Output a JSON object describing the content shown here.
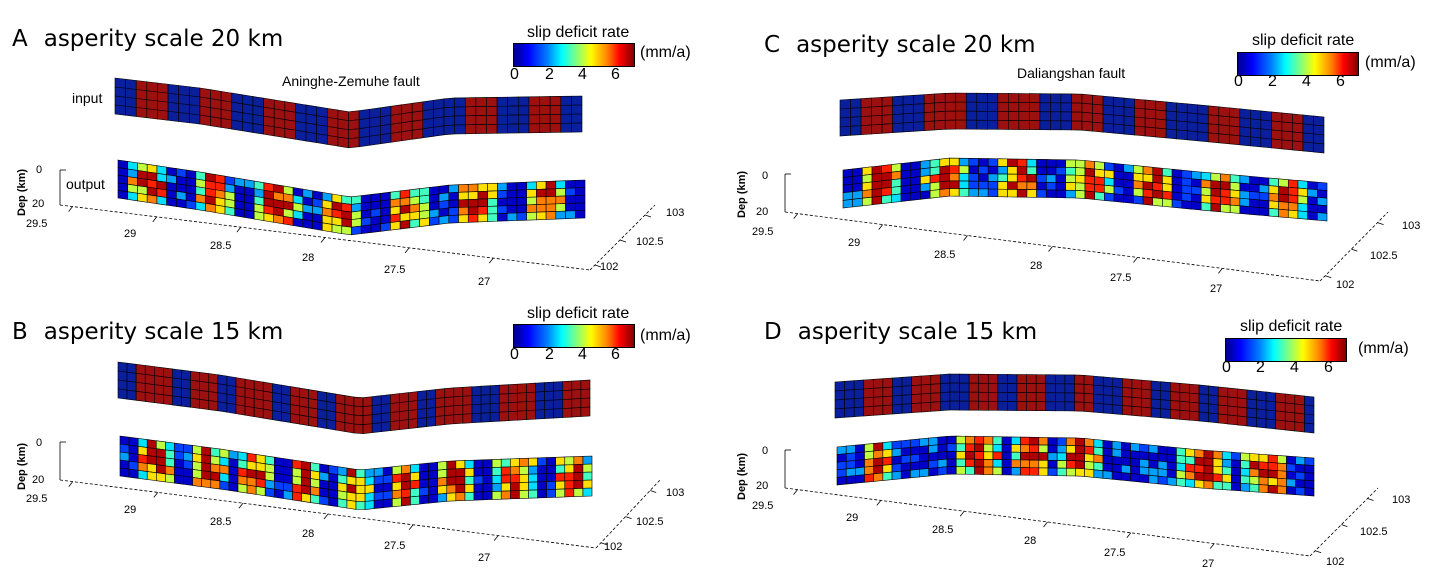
{
  "panels": [
    {
      "id": "A",
      "letter": "A",
      "title": "asperity scale 20 km",
      "fault_name": "Aninghe-Zemuhe fault",
      "row_labels": {
        "input": "input",
        "output": "output"
      },
      "colorbar": {
        "title": "slip deficit rate",
        "ticks": [
          "0",
          "2",
          "4",
          "6"
        ],
        "unit": "(mm/a)"
      },
      "depth_label": "Dep (km)",
      "depth_ticks": [
        "0",
        "20"
      ],
      "lat_ticks": [
        "29.5",
        "29",
        "28.5",
        "28",
        "27.5",
        "27"
      ],
      "lon_ticks": [
        "103",
        "102.5",
        "102"
      ]
    },
    {
      "id": "B",
      "letter": "B",
      "title": "asperity scale 15 km",
      "colorbar": {
        "title": "slip deficit rate",
        "ticks": [
          "0",
          "2",
          "4",
          "6"
        ],
        "unit": "(mm/a)"
      },
      "depth_label": "Dep (km)",
      "depth_ticks": [
        "0",
        "20"
      ],
      "lat_ticks": [
        "29.5",
        "29",
        "28.5",
        "28",
        "27.5",
        "27"
      ],
      "lon_ticks": [
        "103",
        "102.5",
        "102"
      ]
    },
    {
      "id": "C",
      "letter": "C",
      "title": "asperity scale 20 km",
      "fault_name": "Daliangshan fault",
      "colorbar": {
        "title": "slip deficit rate",
        "ticks": [
          "0",
          "2",
          "4",
          "6"
        ],
        "unit": "(mm/a)"
      },
      "depth_label": "Dep (km)",
      "depth_ticks": [
        "0",
        "20"
      ],
      "lat_ticks": [
        "29.5",
        "29",
        "28.5",
        "28",
        "27.5",
        "27"
      ],
      "lon_ticks": [
        "103",
        "102.5",
        "102"
      ]
    },
    {
      "id": "D",
      "letter": "D",
      "title": "asperity scale 15 km",
      "colorbar": {
        "title": "slip deficit rate",
        "ticks": [
          "0",
          "2",
          "4",
          "6"
        ],
        "unit": "(mm/a)"
      },
      "depth_label": "Dep (km)",
      "depth_ticks": [
        "0",
        "20"
      ],
      "lat_ticks": [
        "29.5",
        "29",
        "28.5",
        "28",
        "27.5",
        "27"
      ],
      "lon_ticks": [
        "103",
        "102.5",
        "102"
      ]
    }
  ],
  "colors": {
    "background_blue": "#0a1f9c",
    "asperity_red": "#9c1010",
    "grid_line": "#000000"
  }
}
